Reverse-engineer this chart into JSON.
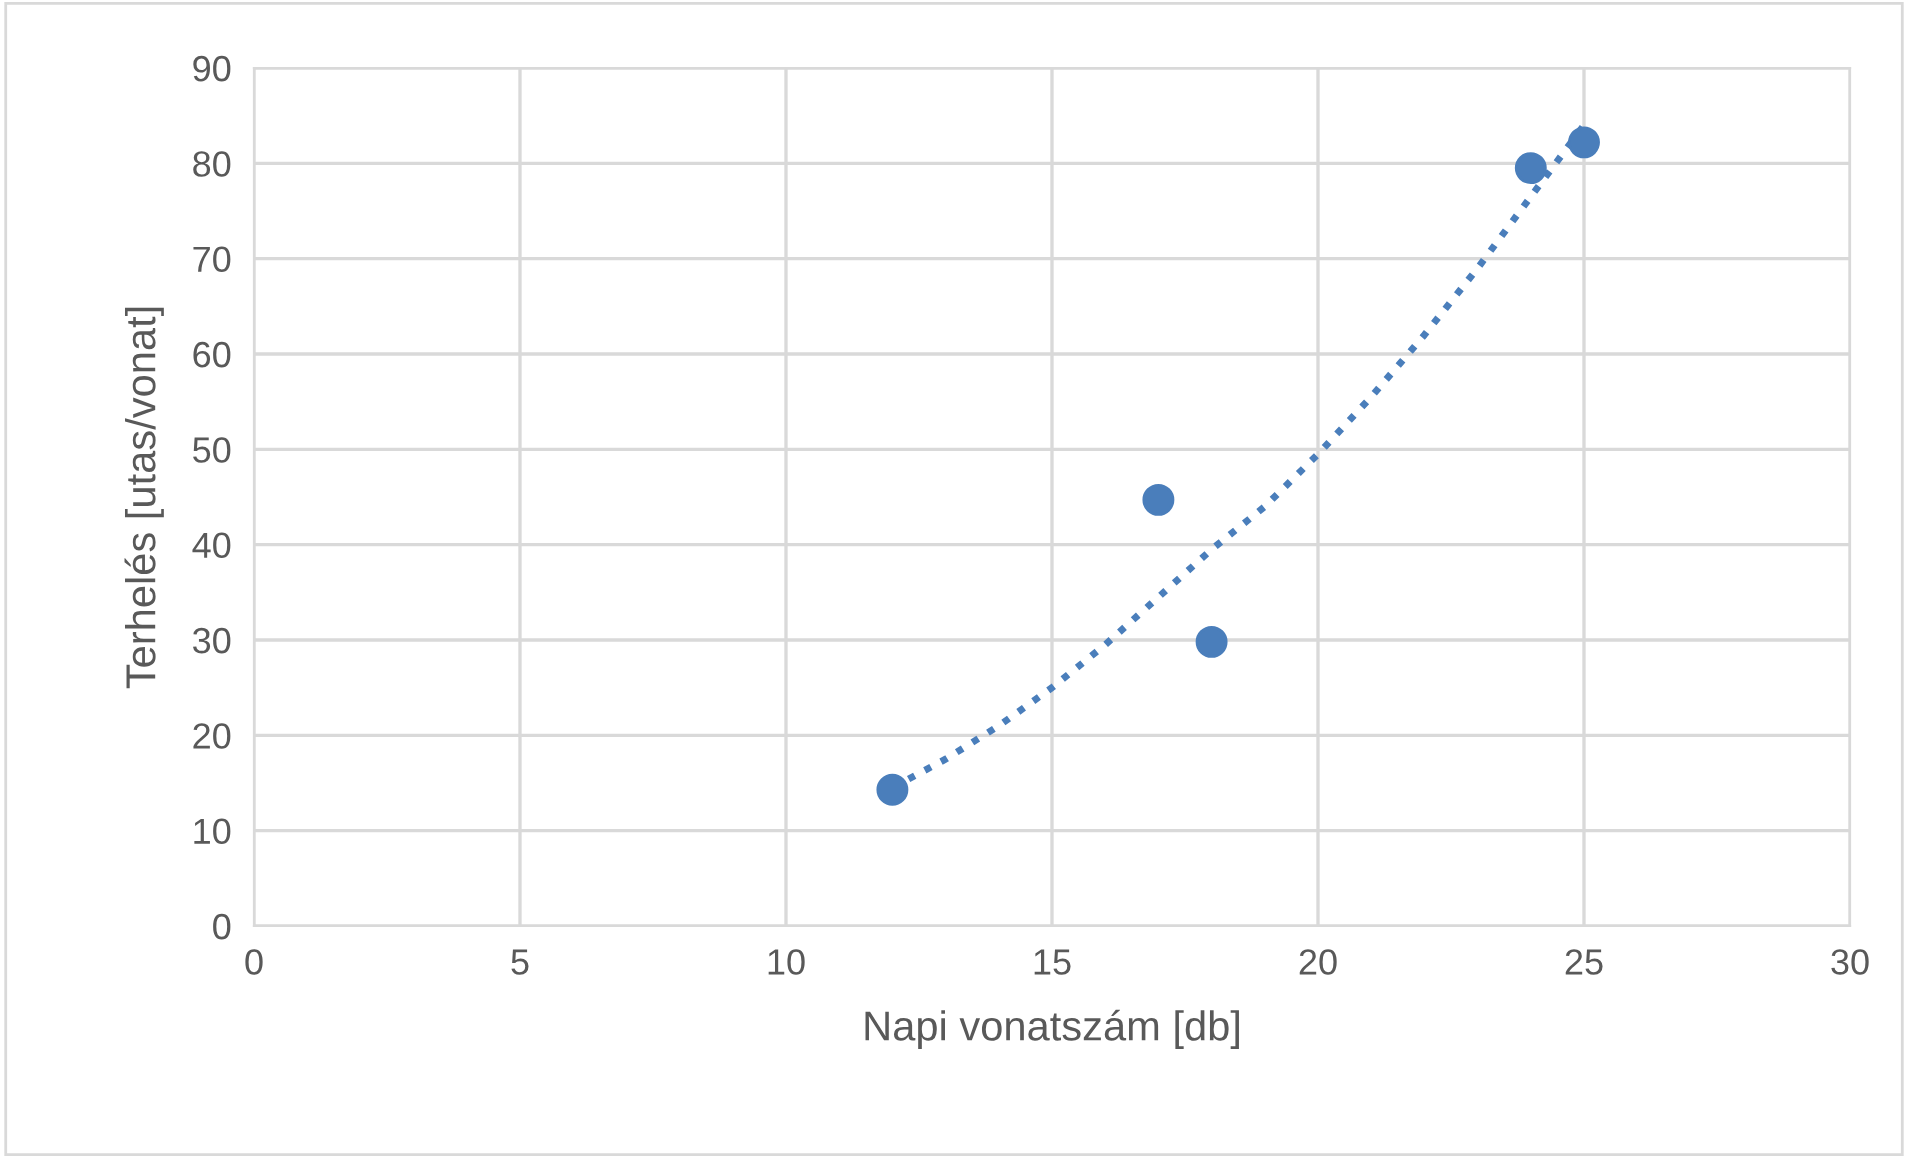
{
  "chart_data": {
    "type": "scatter",
    "xlabel": "Napi vonatszám [db]",
    "ylabel": "Terhelés [utas/vonat]",
    "series": [
      {
        "color": "#4a7ebb",
        "x": [
          12,
          17,
          18,
          24,
          25
        ],
        "values": [
          14.3,
          44.7,
          29.8,
          79.5,
          82.2
        ],
        "marker": "circle"
      },
      {
        "type": "line",
        "color": "#4a7ebb",
        "line_style": "dotted",
        "marker": "none",
        "x": [
          12,
          13,
          14,
          15,
          16,
          17,
          18,
          19,
          20,
          21,
          22,
          23,
          24,
          25
        ],
        "values": [
          14.5,
          17.5,
          21,
          25,
          29.5,
          34.5,
          39.5,
          44,
          49.5,
          55.5,
          62,
          69,
          76.5,
          84
        ]
      }
    ],
    "xlim": [
      0,
      30
    ],
    "xticks": [
      0,
      5,
      10,
      15,
      20,
      25,
      30
    ],
    "ylim": [
      0,
      90
    ],
    "yticks": [
      0,
      10,
      20,
      30,
      40,
      50,
      60,
      70,
      80,
      90
    ],
    "grid": true
  }
}
